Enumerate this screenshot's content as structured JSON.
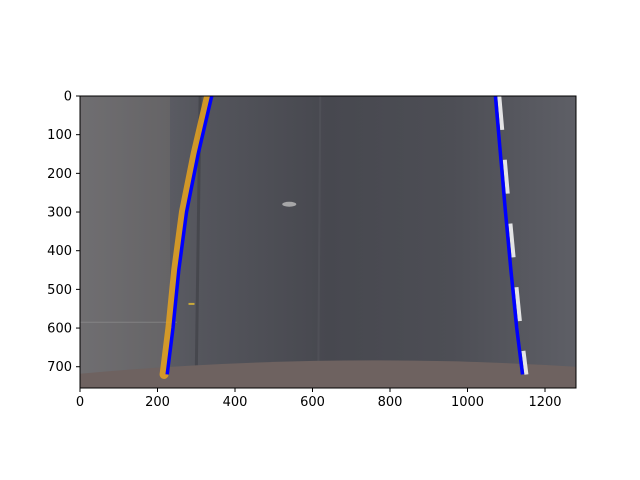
{
  "chart_data": {
    "type": "line",
    "title": "",
    "xlabel": "",
    "ylabel": "",
    "xlim": [
      0,
      1280
    ],
    "ylim": [
      755,
      0
    ],
    "x_ticks": [
      0,
      200,
      400,
      600,
      800,
      1000,
      1200
    ],
    "y_ticks": [
      0,
      100,
      200,
      300,
      400,
      500,
      600,
      700
    ],
    "grid": false,
    "legend": "none",
    "background": "warped road image (birds-eye view, lane markings)",
    "series": [
      {
        "color": "#0000ff",
        "points": [
          [
            340,
            0
          ],
          [
            305,
            150
          ],
          [
            275,
            300
          ],
          [
            255,
            450
          ],
          [
            240,
            600
          ],
          [
            225,
            720
          ]
        ]
      },
      {
        "color": "#0000ff",
        "points": [
          [
            1072,
            0
          ],
          [
            1085,
            150
          ],
          [
            1098,
            300
          ],
          [
            1112,
            450
          ],
          [
            1127,
            600
          ],
          [
            1142,
            720
          ]
        ]
      }
    ]
  }
}
